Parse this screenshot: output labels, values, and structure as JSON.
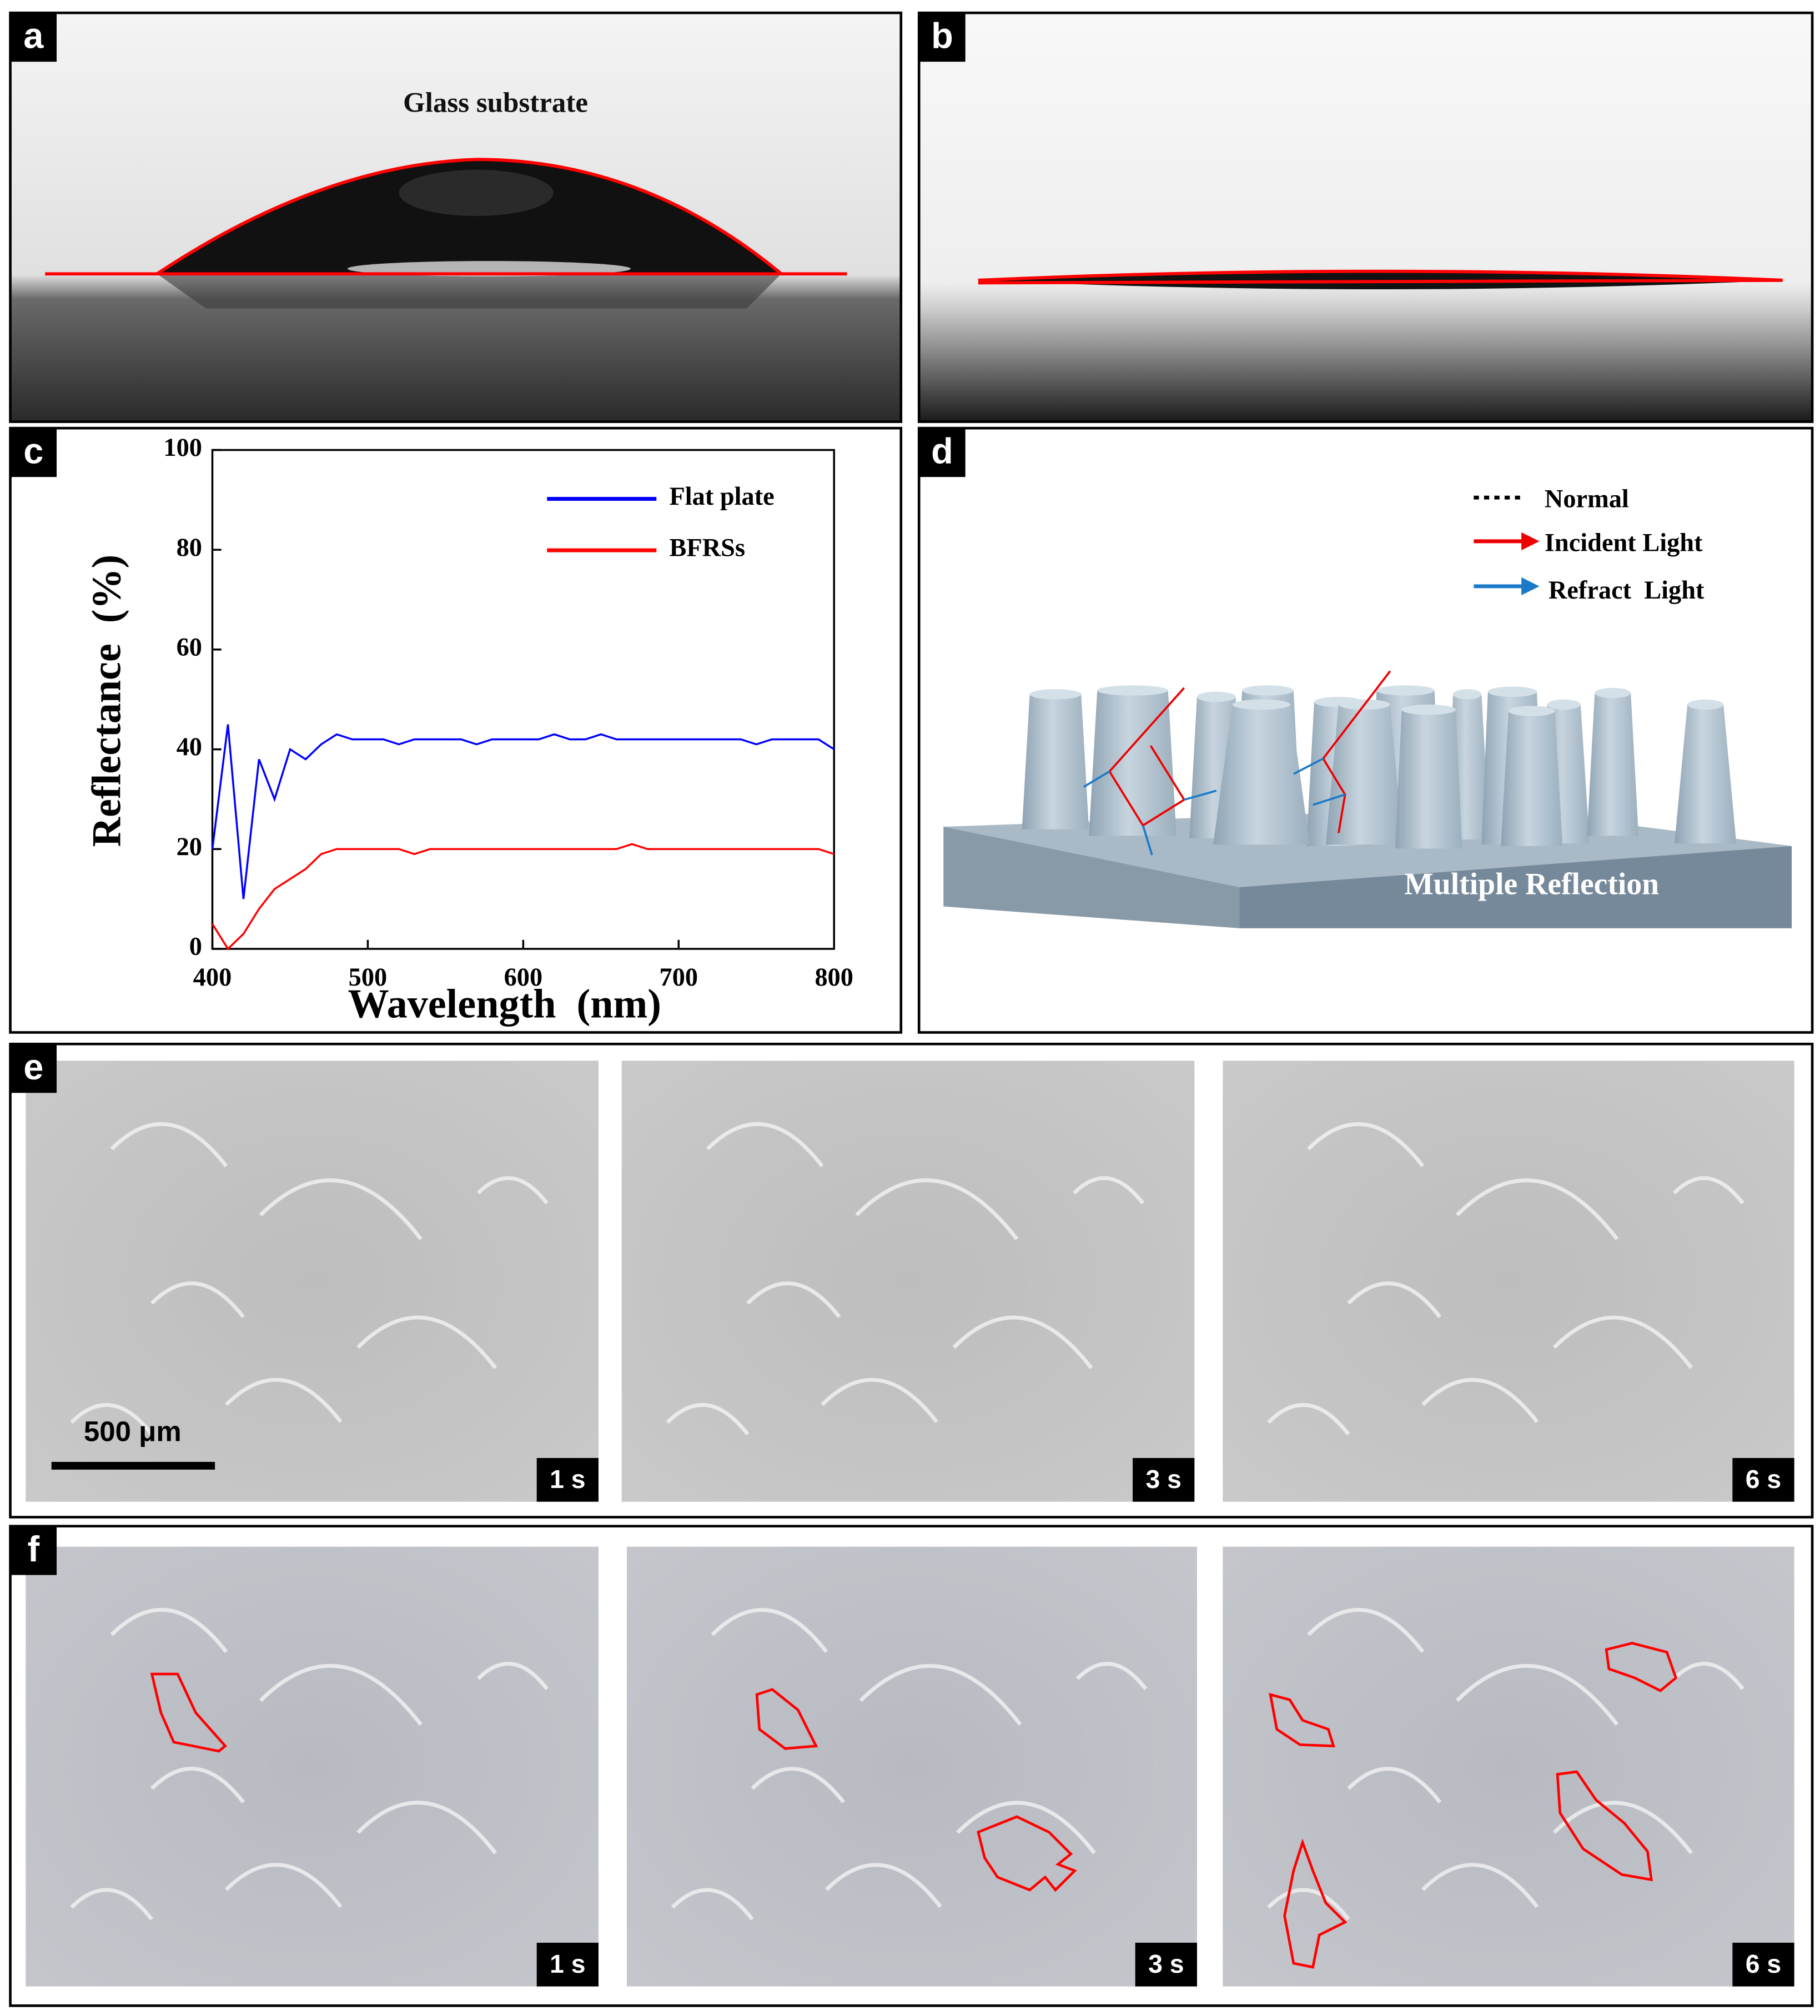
{
  "panels": {
    "labels": [
      "a",
      "b",
      "c",
      "d",
      "e",
      "f"
    ],
    "a": {
      "caption": "Glass substrate"
    },
    "d": {
      "legend": [
        "Normal",
        "Incident Light",
        "Refract  Light"
      ],
      "caption": "Multiple Reflection"
    },
    "e": {
      "scale_bar": "500 μm",
      "times": [
        "1 s",
        "3 s",
        "6 s"
      ]
    },
    "f": {
      "times": [
        "1 s",
        "3 s",
        "6 s"
      ]
    }
  },
  "chart_data": {
    "type": "line",
    "x_label": "Wavelength  (nm)",
    "y_label": "Reflectance  (%)",
    "x": [
      400,
      410,
      420,
      430,
      440,
      450,
      460,
      470,
      480,
      490,
      500,
      510,
      520,
      530,
      540,
      550,
      560,
      570,
      580,
      590,
      600,
      610,
      620,
      630,
      640,
      650,
      660,
      670,
      680,
      690,
      700,
      710,
      720,
      730,
      740,
      750,
      760,
      770,
      780,
      790,
      800
    ],
    "series": [
      {
        "name": "Flat plate",
        "color": "#0000ff",
        "values": [
          20,
          45,
          10,
          38,
          30,
          40,
          38,
          41,
          43,
          42,
          42,
          42,
          41,
          42,
          42,
          42,
          42,
          41,
          42,
          42,
          42,
          42,
          43,
          42,
          42,
          43,
          42,
          42,
          42,
          42,
          42,
          42,
          42,
          42,
          42,
          41,
          42,
          42,
          42,
          42,
          40
        ]
      },
      {
        "name": "BFRSs",
        "color": "#ff0000",
        "values": [
          5,
          0,
          3,
          8,
          12,
          14,
          16,
          19,
          20,
          20,
          20,
          20,
          20,
          19,
          20,
          20,
          20,
          20,
          20,
          20,
          20,
          20,
          20,
          20,
          20,
          20,
          20,
          21,
          20,
          20,
          20,
          20,
          20,
          20,
          20,
          20,
          20,
          20,
          20,
          20,
          19
        ]
      }
    ],
    "xlim": [
      400,
      800
    ],
    "xticks": [
      400,
      500,
      600,
      700,
      800
    ],
    "ylim": [
      0,
      100
    ],
    "yticks": [
      0,
      20,
      40,
      60,
      80,
      100
    ],
    "legend": "upper right"
  }
}
